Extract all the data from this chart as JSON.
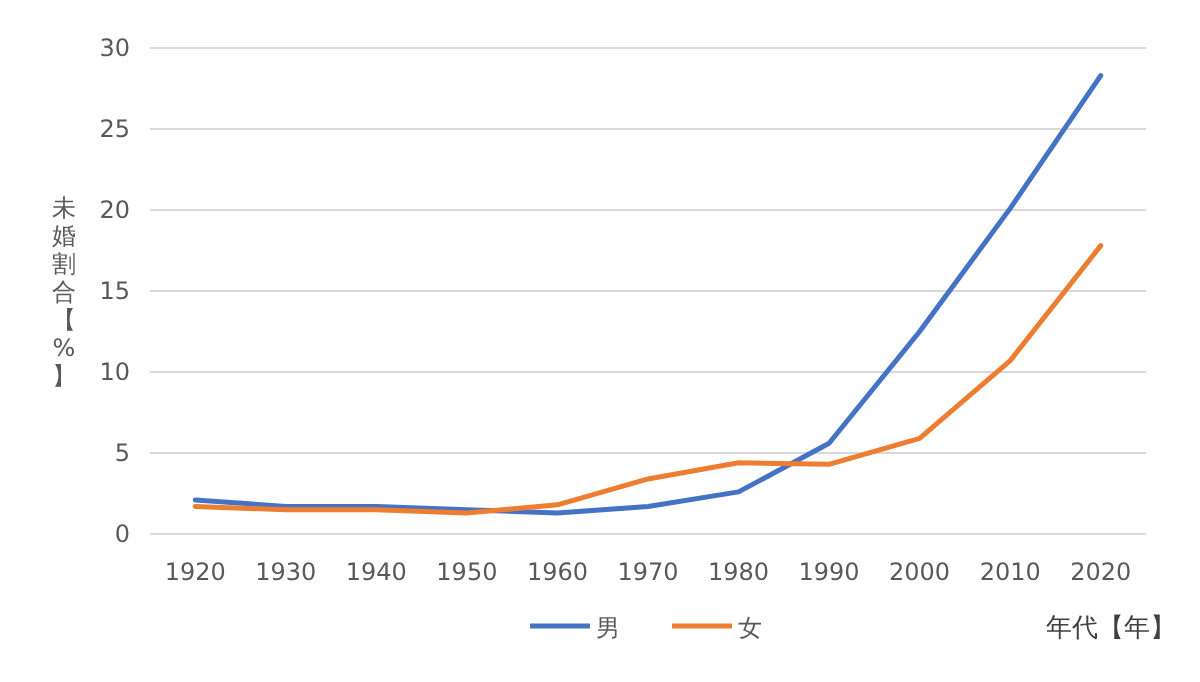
{
  "chart_data": {
    "type": "line",
    "xlabel": "年代【年】",
    "ylabel": "未婚割合【%】",
    "categories": [
      "1920",
      "1930",
      "1940",
      "1950",
      "1960",
      "1970",
      "1980",
      "1990",
      "2000",
      "2010",
      "2020"
    ],
    "series": [
      {
        "name": "男",
        "color": "#4472c4",
        "values": [
          2.1,
          1.7,
          1.7,
          1.5,
          1.3,
          1.7,
          2.6,
          5.6,
          12.5,
          20.1,
          28.3
        ]
      },
      {
        "name": "女",
        "color": "#ed7d31",
        "values": [
          1.7,
          1.5,
          1.5,
          1.3,
          1.8,
          3.4,
          4.4,
          4.3,
          5.9,
          10.7,
          17.8
        ]
      }
    ],
    "ylim": [
      0,
      30
    ],
    "yticks": [
      0,
      5,
      10,
      15,
      20,
      25,
      30
    ],
    "grid": "y",
    "legend": "bottom"
  }
}
